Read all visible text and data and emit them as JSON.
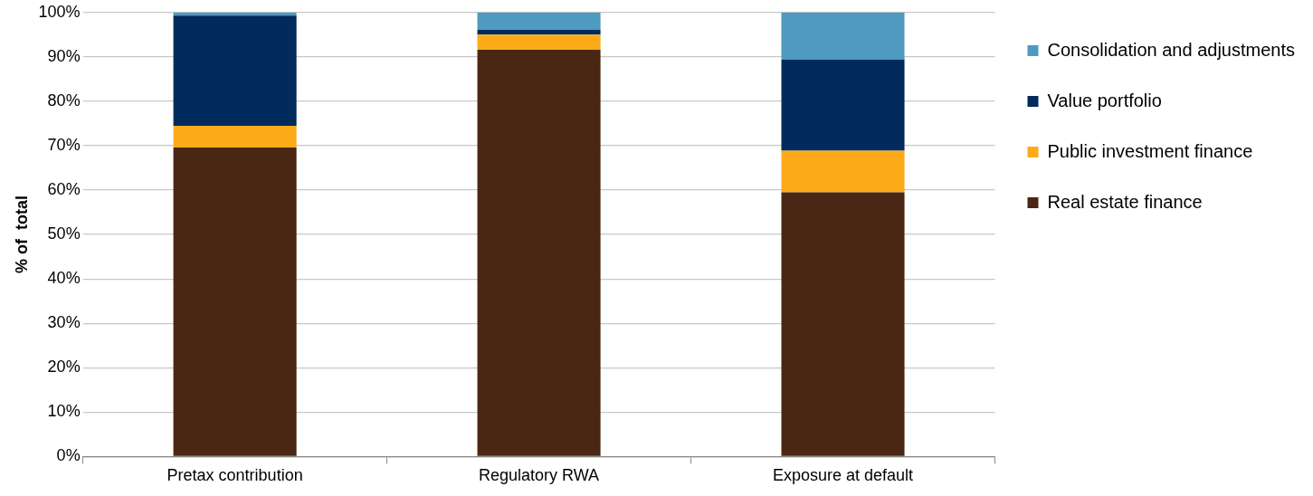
{
  "chart_data": {
    "type": "bar",
    "stacked": true,
    "ylabel": "% of  total",
    "categories": [
      "Pretax contribution",
      "Regulatory RWA",
      "Exposure at default"
    ],
    "series": [
      {
        "name": "Real estate finance",
        "color": "#4a2714",
        "values": [
          69.6,
          91.6,
          59.5
        ]
      },
      {
        "name": "Public investment finance",
        "color": "#fdaa19",
        "values": [
          4.9,
          3.4,
          9.4
        ]
      },
      {
        "name": "Value portfolio",
        "color": "#002b5c",
        "values": [
          24.8,
          1.1,
          20.5
        ]
      },
      {
        "name": "Consolidation and adjustments",
        "color": "#4e9ac1",
        "values": [
          0.7,
          3.9,
          10.6
        ]
      }
    ],
    "ylim": [
      0,
      100
    ],
    "yticks": [
      {
        "value": 0,
        "label": "0%"
      },
      {
        "value": 10,
        "label": "10%"
      },
      {
        "value": 20,
        "label": "20%"
      },
      {
        "value": 30,
        "label": "30%"
      },
      {
        "value": 40,
        "label": "40%"
      },
      {
        "value": 50,
        "label": "50%"
      },
      {
        "value": 60,
        "label": "60%"
      },
      {
        "value": 70,
        "label": "70%"
      },
      {
        "value": 80,
        "label": "80%"
      },
      {
        "value": 90,
        "label": "90%"
      },
      {
        "value": 100,
        "label": "100%"
      }
    ],
    "grid": "y",
    "legend": "right"
  }
}
